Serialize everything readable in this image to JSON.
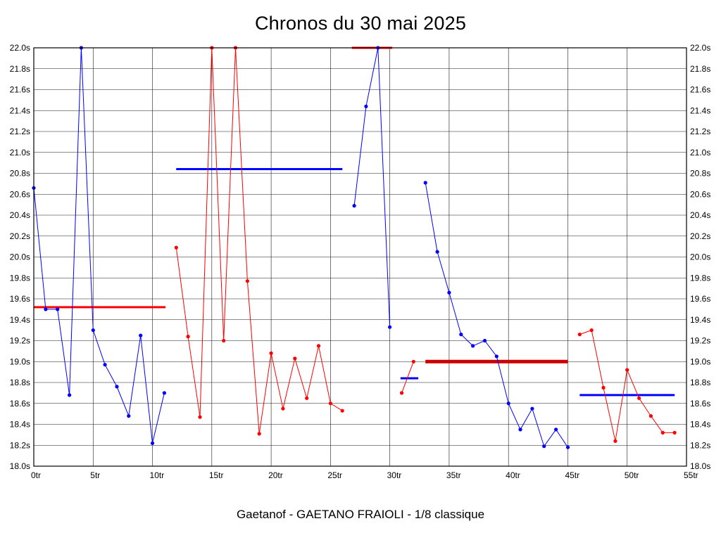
{
  "chart_data": {
    "type": "line",
    "title": "Chronos du 30 mai 2025",
    "subtitle": "Gaetanof - GAETANO FRAIOLI - 1/8 classique",
    "xlabel": "",
    "ylabel": "",
    "xlim": [
      0,
      55
    ],
    "ylim": [
      18.0,
      22.0
    ],
    "x_ticks": [
      0,
      5,
      10,
      15,
      20,
      25,
      30,
      35,
      40,
      45,
      50,
      55
    ],
    "x_tick_suffix": "tr",
    "y_tick_step": 0.2,
    "y_tick_suffix": "s",
    "grid": true,
    "legend_position": "none",
    "colors": {
      "blue_series": "#0000ff",
      "red_series": "#ff0000",
      "thick_average": "#cc0000"
    },
    "series": [
      {
        "name": "run-1-laps-0-11",
        "color": "#0000ff",
        "points": [
          [
            0,
            20.66
          ],
          [
            1,
            19.5
          ],
          [
            2,
            19.5
          ],
          [
            3,
            18.68
          ],
          [
            4,
            22.0
          ],
          [
            5,
            19.3
          ],
          [
            6,
            18.97
          ],
          [
            7,
            18.76
          ],
          [
            8,
            18.48
          ],
          [
            9,
            19.25
          ],
          [
            10,
            18.22
          ],
          [
            11,
            18.7
          ]
        ]
      },
      {
        "name": "run-2-laps-12-26",
        "color": "#ff0000",
        "points": [
          [
            12,
            20.09
          ],
          [
            13,
            19.24
          ],
          [
            14,
            18.47
          ],
          [
            15,
            22.0
          ],
          [
            16,
            19.2
          ],
          [
            17,
            22.0
          ],
          [
            18,
            19.77
          ],
          [
            19,
            18.31
          ],
          [
            20,
            19.08
          ],
          [
            21,
            18.55
          ],
          [
            22,
            19.03
          ],
          [
            23,
            18.65
          ],
          [
            24,
            19.15
          ],
          [
            25,
            18.6
          ],
          [
            26,
            18.53
          ]
        ]
      },
      {
        "name": "run-3-laps-27-30",
        "color": "#0000ff",
        "points": [
          [
            27,
            20.49
          ],
          [
            28,
            21.44
          ],
          [
            29,
            22.0
          ],
          [
            30,
            19.33
          ]
        ]
      },
      {
        "name": "run-4-laps-31-32",
        "color": "#ff0000",
        "points": [
          [
            31,
            18.7
          ],
          [
            32,
            19.0
          ]
        ]
      },
      {
        "name": "run-5-laps-33-45",
        "color": "#0000ff",
        "points": [
          [
            33,
            20.71
          ],
          [
            34,
            20.05
          ],
          [
            35,
            19.66
          ],
          [
            36,
            19.26
          ],
          [
            37,
            19.15
          ],
          [
            38,
            19.2
          ],
          [
            39,
            19.05
          ],
          [
            40,
            18.6
          ],
          [
            41,
            18.35
          ],
          [
            42,
            18.55
          ],
          [
            43,
            18.19
          ],
          [
            44,
            18.35
          ],
          [
            45,
            18.18
          ]
        ]
      },
      {
        "name": "run-6-laps-46-54",
        "color": "#ff0000",
        "points": [
          [
            46,
            19.26
          ],
          [
            47,
            19.3
          ],
          [
            48,
            18.75
          ],
          [
            49,
            18.24
          ],
          [
            50,
            18.92
          ],
          [
            51,
            18.65
          ],
          [
            52,
            18.48
          ],
          [
            53,
            18.32
          ],
          [
            54,
            18.32
          ]
        ]
      }
    ],
    "average_lines": [
      {
        "name": "avg-run-1",
        "color": "#ff0000",
        "y": 19.52,
        "x1": 0,
        "x2": 11.1,
        "width": 3
      },
      {
        "name": "avg-run-2",
        "color": "#0000ff",
        "y": 20.84,
        "x1": 12,
        "x2": 26,
        "width": 3
      },
      {
        "name": "avg-run-3",
        "color": "#ff0000",
        "y": 22.0,
        "x1": 26.8,
        "x2": 30.2,
        "width": 3
      },
      {
        "name": "avg-run-4",
        "color": "#0000ff",
        "y": 18.84,
        "x1": 30.9,
        "x2": 32.4,
        "width": 3
      },
      {
        "name": "avg-run-5",
        "color": "#cc0000",
        "y": 19.0,
        "x1": 33,
        "x2": 45,
        "width": 5
      },
      {
        "name": "avg-run-6",
        "color": "#0000ff",
        "y": 18.68,
        "x1": 46,
        "x2": 54,
        "width": 3
      }
    ]
  }
}
